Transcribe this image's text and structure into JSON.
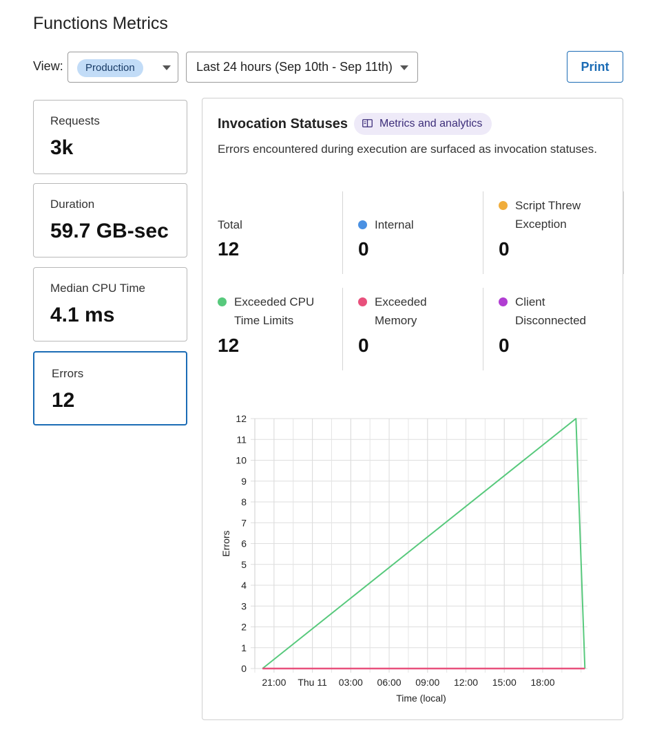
{
  "page": {
    "title": "Functions Metrics"
  },
  "filters": {
    "view_label": "View:",
    "environment": "Production",
    "time_range": "Last 24 hours (Sep 10th - Sep 11th)",
    "print_label": "Print"
  },
  "stats": [
    {
      "label": "Requests",
      "value": "3k"
    },
    {
      "label": "Duration",
      "value": "59.7 GB-sec"
    },
    {
      "label": "Median CPU Time",
      "value": "4.1 ms"
    },
    {
      "label": "Errors",
      "value": "12",
      "selected": true
    }
  ],
  "panel": {
    "title": "Invocation Statuses",
    "doc_link": {
      "label": "Metrics and analytics",
      "icon": "book-icon"
    },
    "description": "Errors encountered during execution are surfaced as invocation statuses.",
    "statuses": [
      {
        "name": "Total",
        "count": "12"
      },
      {
        "name": "Internal",
        "count": "0",
        "color": "#4a90e2"
      },
      {
        "name": "Script Threw Exception",
        "count": "0",
        "color": "#f0ad3c"
      },
      {
        "name": "Exceeded CPU Time Limits",
        "count": "12",
        "color": "#57c97c"
      },
      {
        "name": "Exceeded Memory",
        "count": "0",
        "color": "#e8507c"
      },
      {
        "name": "Client Disconnected",
        "count": "0",
        "color": "#b13ed2"
      }
    ]
  },
  "chart_data": {
    "type": "line",
    "title": "",
    "xlabel": "Time (local)",
    "ylabel": "Errors",
    "ylim": [
      0,
      12
    ],
    "yticks": [
      0,
      1,
      2,
      3,
      4,
      5,
      6,
      7,
      8,
      9,
      10,
      11,
      12
    ],
    "x_tick_labels": [
      "21:00",
      "Thu 11",
      "03:00",
      "06:00",
      "09:00",
      "12:00",
      "15:00",
      "18:00"
    ],
    "x_tick_hours": [
      21,
      24,
      27,
      30,
      33,
      36,
      39,
      42
    ],
    "xlim_hours": [
      19.5,
      45.5
    ],
    "grid": true,
    "series": [
      {
        "color": "#57c97c",
        "x_hours": [
          20.1,
          44.6,
          45.3
        ],
        "values": [
          0,
          12,
          0
        ]
      },
      {
        "color": "#e8507c",
        "x_hours": [
          20.1,
          45.3
        ],
        "values": [
          0,
          0
        ]
      }
    ]
  }
}
